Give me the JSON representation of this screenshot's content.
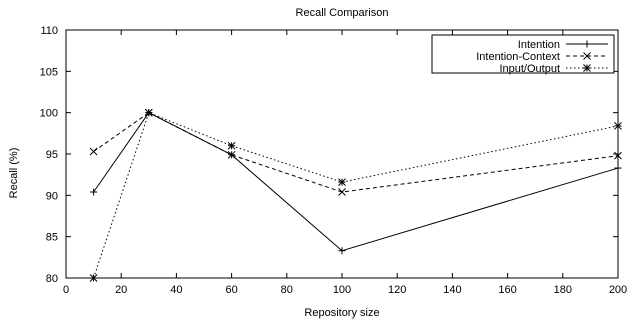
{
  "chart_data": {
    "type": "line",
    "title": "Recall Comparison",
    "xlabel": "Repository size",
    "ylabel": "Recall (%)",
    "xlim": [
      0,
      200
    ],
    "ylim": [
      80,
      110
    ],
    "xticks": [
      0,
      20,
      40,
      60,
      80,
      100,
      120,
      140,
      160,
      180,
      200
    ],
    "yticks": [
      80,
      85,
      90,
      95,
      100,
      105,
      110
    ],
    "grid": false,
    "legend_position": "top-right",
    "series": [
      {
        "name": "Intention",
        "marker": "plus",
        "line_style": "solid",
        "color": "#000000",
        "x": [
          10,
          30,
          60,
          100,
          200
        ],
        "y": [
          90.4,
          100,
          94.9,
          83.3,
          93.3
        ]
      },
      {
        "name": "Intention-Context",
        "marker": "cross",
        "line_style": "dashed",
        "color": "#000000",
        "x": [
          10,
          30,
          60,
          100,
          200
        ],
        "y": [
          95.3,
          100,
          94.9,
          90.4,
          94.8
        ]
      },
      {
        "name": "Input/Output",
        "marker": "star",
        "line_style": "dotted",
        "color": "#000000",
        "x": [
          10,
          30,
          60,
          100,
          200
        ],
        "y": [
          80,
          100,
          96,
          91.6,
          98.4
        ]
      }
    ]
  }
}
